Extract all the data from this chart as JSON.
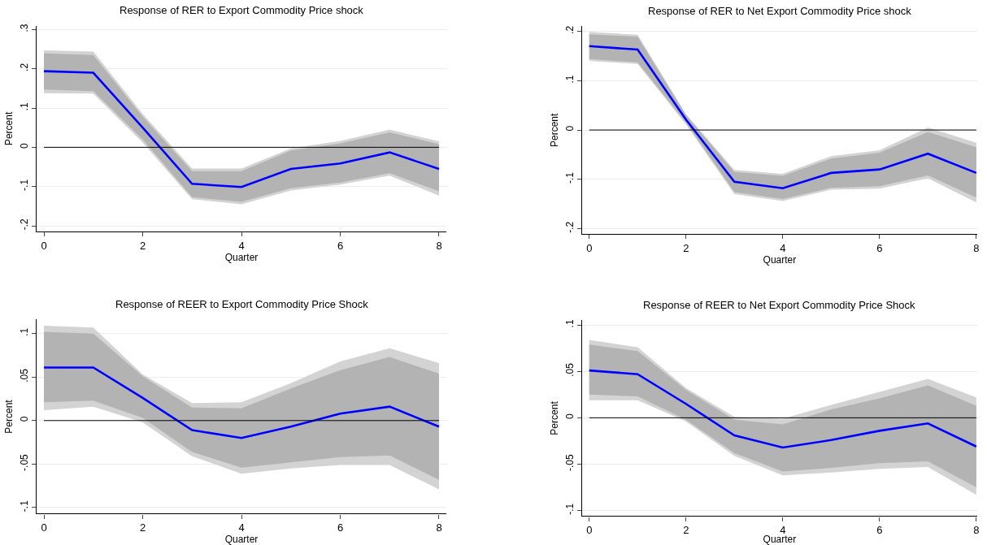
{
  "chart_data": [
    {
      "type": "line",
      "title": "Response of RER to Export Commodity Price shock",
      "xlabel": "Quarter",
      "ylabel": "Percent",
      "x": [
        0,
        1,
        2,
        3,
        4,
        5,
        6,
        7,
        8
      ],
      "xlim": [
        -0.15,
        8.15
      ],
      "xticks": [
        0,
        2,
        4,
        6,
        8
      ],
      "ylim": [
        -0.215,
        0.31
      ],
      "yticks": [
        {
          "value": -0.2,
          "label": "-.2"
        },
        {
          "value": -0.1,
          "label": "-.1"
        },
        0,
        {
          "value": 0.1,
          "label": ".1"
        },
        {
          "value": 0.2,
          "label": ".2"
        },
        {
          "value": 0.3,
          "label": ".3"
        }
      ],
      "grid": "y",
      "ref_lines": [
        {
          "axis": "y",
          "value": 0,
          "color": "#000000"
        }
      ],
      "series": [
        {
          "color": "#d3d3d3",
          "values": [
            null,
            null,
            null,
            null,
            null,
            null,
            null,
            null,
            null
          ],
          "lower": [
            0.138,
            0.137,
            0.012,
            -0.132,
            -0.145,
            -0.11,
            -0.095,
            -0.072,
            -0.123
          ],
          "upper": [
            0.247,
            0.244,
            0.085,
            -0.054,
            -0.054,
            -0.003,
            0.016,
            0.045,
            0.015
          ]
        },
        {
          "color": "#b3b3b3",
          "values": [
            null,
            null,
            null,
            null,
            null,
            null,
            null,
            null,
            null
          ],
          "lower": [
            0.147,
            0.143,
            0.02,
            -0.127,
            -0.139,
            -0.104,
            -0.09,
            -0.066,
            -0.112
          ],
          "upper": [
            0.239,
            0.235,
            0.078,
            -0.061,
            -0.061,
            -0.008,
            0.01,
            0.038,
            0.008
          ]
        },
        {
          "color": "#0000ff",
          "values": [
            0.194,
            0.19,
            0.05,
            -0.093,
            -0.101,
            -0.055,
            -0.041,
            -0.013,
            -0.055
          ]
        }
      ]
    },
    {
      "type": "line",
      "title": "Response of RER to Net Export Commodity Price shock",
      "xlabel": "Quarter",
      "ylabel": "Percent",
      "x": [
        0,
        1,
        2,
        3,
        4,
        5,
        6,
        7,
        8
      ],
      "xlim": [
        -0.15,
        8.02
      ],
      "xticks": [
        0,
        2,
        4,
        6,
        8
      ],
      "ylim": [
        -0.211,
        0.21
      ],
      "yticks": [
        {
          "value": -0.2,
          "label": "-.2"
        },
        {
          "value": -0.1,
          "label": "-.1"
        },
        0,
        {
          "value": 0.1,
          "label": ".1"
        },
        {
          "value": 0.2,
          "label": ".2"
        }
      ],
      "grid": "y",
      "ref_lines": [
        {
          "axis": "y",
          "value": 0,
          "color": "#000000"
        }
      ],
      "series": [
        {
          "color": "#d3d3d3",
          "values": [
            null,
            null,
            null,
            null,
            null,
            null,
            null,
            null,
            null
          ],
          "lower": [
            0.14,
            0.134,
            0.011,
            -0.13,
            -0.144,
            -0.121,
            -0.119,
            -0.098,
            -0.147
          ],
          "upper": [
            0.199,
            0.193,
            0.032,
            -0.081,
            -0.089,
            -0.053,
            -0.041,
            0.005,
            -0.026
          ]
        },
        {
          "color": "#b3b3b3",
          "values": [
            null,
            null,
            null,
            null,
            null,
            null,
            null,
            null,
            null
          ],
          "lower": [
            0.144,
            0.137,
            0.015,
            -0.126,
            -0.14,
            -0.117,
            -0.114,
            -0.092,
            -0.137
          ],
          "upper": [
            0.194,
            0.189,
            0.03,
            -0.085,
            -0.093,
            -0.058,
            -0.046,
            -0.004,
            -0.035
          ]
        },
        {
          "color": "#0000ff",
          "values": [
            0.17,
            0.163,
            0.021,
            -0.105,
            -0.118,
            -0.087,
            -0.08,
            -0.048,
            -0.087
          ]
        }
      ]
    },
    {
      "type": "line",
      "title": "Response of REER to Export Commodity Price Shock",
      "xlabel": "Quarter",
      "ylabel": "Percent",
      "x": [
        0,
        1,
        2,
        3,
        4,
        5,
        6,
        7,
        8
      ],
      "xlim": [
        -0.15,
        8.15
      ],
      "xticks": [
        0,
        2,
        4,
        6,
        8
      ],
      "ylim": [
        -0.107,
        0.116
      ],
      "yticks": [
        {
          "value": -0.1,
          "label": "-.1"
        },
        {
          "value": -0.05,
          "label": "-.05"
        },
        0,
        {
          "value": 0.05,
          "label": ".05"
        },
        {
          "value": 0.1,
          "label": ".1"
        }
      ],
      "grid": "y",
      "ref_lines": [
        {
          "axis": "y",
          "value": 0,
          "color": "#000000"
        }
      ],
      "series": [
        {
          "color": "#d3d3d3",
          "values": [
            null,
            null,
            null,
            null,
            null,
            null,
            null,
            null,
            null
          ],
          "lower": [
            0.012,
            0.016,
            -0.002,
            -0.041,
            -0.061,
            -0.055,
            -0.051,
            -0.051,
            -0.079
          ],
          "upper": [
            0.109,
            0.107,
            0.053,
            0.02,
            0.021,
            0.043,
            0.068,
            0.083,
            0.066
          ]
        },
        {
          "color": "#b3b3b3",
          "values": [
            null,
            null,
            null,
            null,
            null,
            null,
            null,
            null,
            null
          ],
          "lower": [
            0.021,
            0.023,
            0.003,
            -0.036,
            -0.054,
            -0.048,
            -0.042,
            -0.04,
            -0.068
          ],
          "upper": [
            0.102,
            0.1,
            0.051,
            0.015,
            0.014,
            0.037,
            0.058,
            0.073,
            0.054
          ]
        },
        {
          "color": "#0000ff",
          "values": [
            0.061,
            0.061,
            0.026,
            -0.011,
            -0.02,
            -0.007,
            0.008,
            0.016,
            -0.007
          ]
        }
      ]
    },
    {
      "type": "line",
      "title": "Response of REER to Net Export Commodity Price Shock",
      "xlabel": "Quarter",
      "ylabel": "Percent",
      "x": [
        0,
        1,
        2,
        3,
        4,
        5,
        6,
        7,
        8
      ],
      "xlim": [
        -0.15,
        8.02
      ],
      "xticks": [
        0,
        2,
        4,
        6,
        8
      ],
      "ylim": [
        -0.106,
        0.105
      ],
      "yticks": [
        {
          "value": -0.1,
          "label": "-.1"
        },
        {
          "value": -0.05,
          "label": "-.05"
        },
        0,
        {
          "value": 0.05,
          "label": ".05"
        },
        {
          "value": 0.1,
          "label": ".1"
        }
      ],
      "grid": "y",
      "ref_lines": [
        {
          "axis": "y",
          "value": 0,
          "color": "#000000"
        }
      ],
      "series": [
        {
          "color": "#d3d3d3",
          "values": [
            null,
            null,
            null,
            null,
            null,
            null,
            null,
            null,
            null
          ],
          "lower": [
            0.019,
            0.019,
            -0.004,
            -0.041,
            -0.062,
            -0.059,
            -0.055,
            -0.053,
            -0.083
          ],
          "upper": [
            0.084,
            0.076,
            0.032,
            0.001,
            -0.001,
            0.014,
            0.028,
            0.042,
            0.022
          ]
        },
        {
          "color": "#b3b3b3",
          "values": [
            null,
            null,
            null,
            null,
            null,
            null,
            null,
            null,
            null
          ],
          "lower": [
            0.025,
            0.023,
            -0.002,
            -0.038,
            -0.058,
            -0.054,
            -0.049,
            -0.047,
            -0.075
          ],
          "upper": [
            0.079,
            0.072,
            0.03,
            -0.002,
            -0.007,
            0.009,
            0.021,
            0.035,
            0.013
          ]
        },
        {
          "color": "#0000ff",
          "values": [
            0.051,
            0.047,
            0.015,
            -0.019,
            -0.032,
            -0.024,
            -0.014,
            -0.006,
            -0.031
          ]
        }
      ]
    }
  ]
}
